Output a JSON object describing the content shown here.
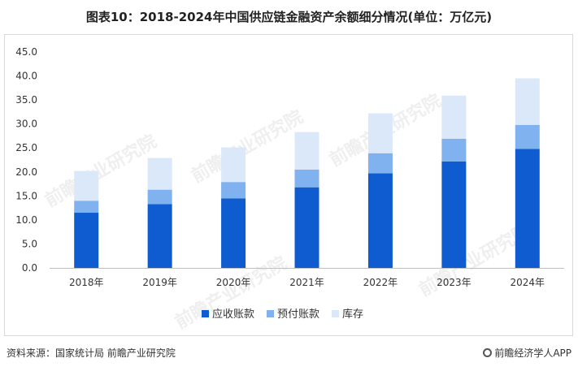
{
  "title": "图表10：2018-2024年中国供应链金融资产余额细分情况(单位：万亿元)",
  "footer": {
    "source": "资料来源：国家统计局 前瞻产业研究院",
    "brand": "前瞻经济学人APP"
  },
  "watermark": "前瞻产业研究院",
  "chart_data": {
    "type": "bar",
    "stacked": true,
    "categories": [
      "2018年",
      "2019年",
      "2020年",
      "2021年",
      "2022年",
      "2023年",
      "2024年"
    ],
    "series": [
      {
        "name": "应收账款",
        "color": "#0e5ccf",
        "values": [
          11.5,
          13.3,
          14.5,
          16.8,
          19.7,
          22.2,
          24.8
        ]
      },
      {
        "name": "预付账款",
        "color": "#7fb2ee",
        "values": [
          2.5,
          3.0,
          3.4,
          3.7,
          4.2,
          4.7,
          5.0
        ]
      },
      {
        "name": "库存",
        "color": "#dbe8fa",
        "values": [
          6.2,
          6.6,
          7.2,
          7.8,
          8.3,
          9.0,
          9.7
        ]
      }
    ],
    "yticks": [
      "0.0",
      "5.0",
      "10.0",
      "15.0",
      "20.0",
      "25.0",
      "30.0",
      "35.0",
      "40.0",
      "45.0"
    ],
    "ylim": [
      0,
      45
    ],
    "grid": false,
    "legend": "bottom"
  }
}
